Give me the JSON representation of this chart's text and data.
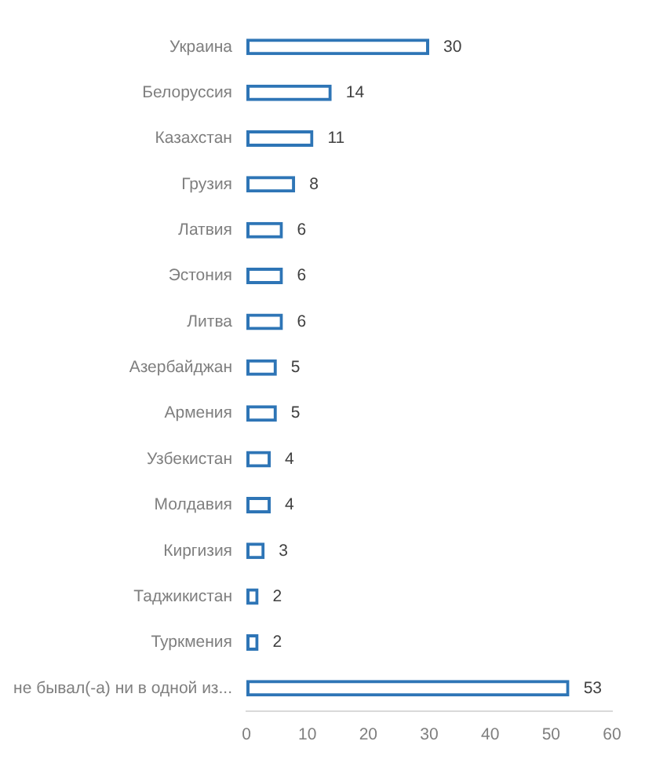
{
  "chart_data": {
    "type": "bar",
    "orientation": "horizontal",
    "categories": [
      "Украина",
      "Белоруссия",
      "Казахстан",
      "Грузия",
      "Латвия",
      "Эстония",
      "Литва",
      "Азербайджан",
      "Армения",
      "Узбекистан",
      "Молдавия",
      "Киргизия",
      "Таджикистан",
      "Туркмения",
      "не бывал(-а) ни в одной из..."
    ],
    "values": [
      30,
      14,
      11,
      8,
      6,
      6,
      6,
      5,
      5,
      4,
      4,
      3,
      2,
      2,
      53
    ],
    "color": "#2e75b6",
    "xlim": [
      0,
      60
    ],
    "xticks": [
      0,
      10,
      20,
      30,
      40,
      50,
      60
    ],
    "data_labels": true
  }
}
